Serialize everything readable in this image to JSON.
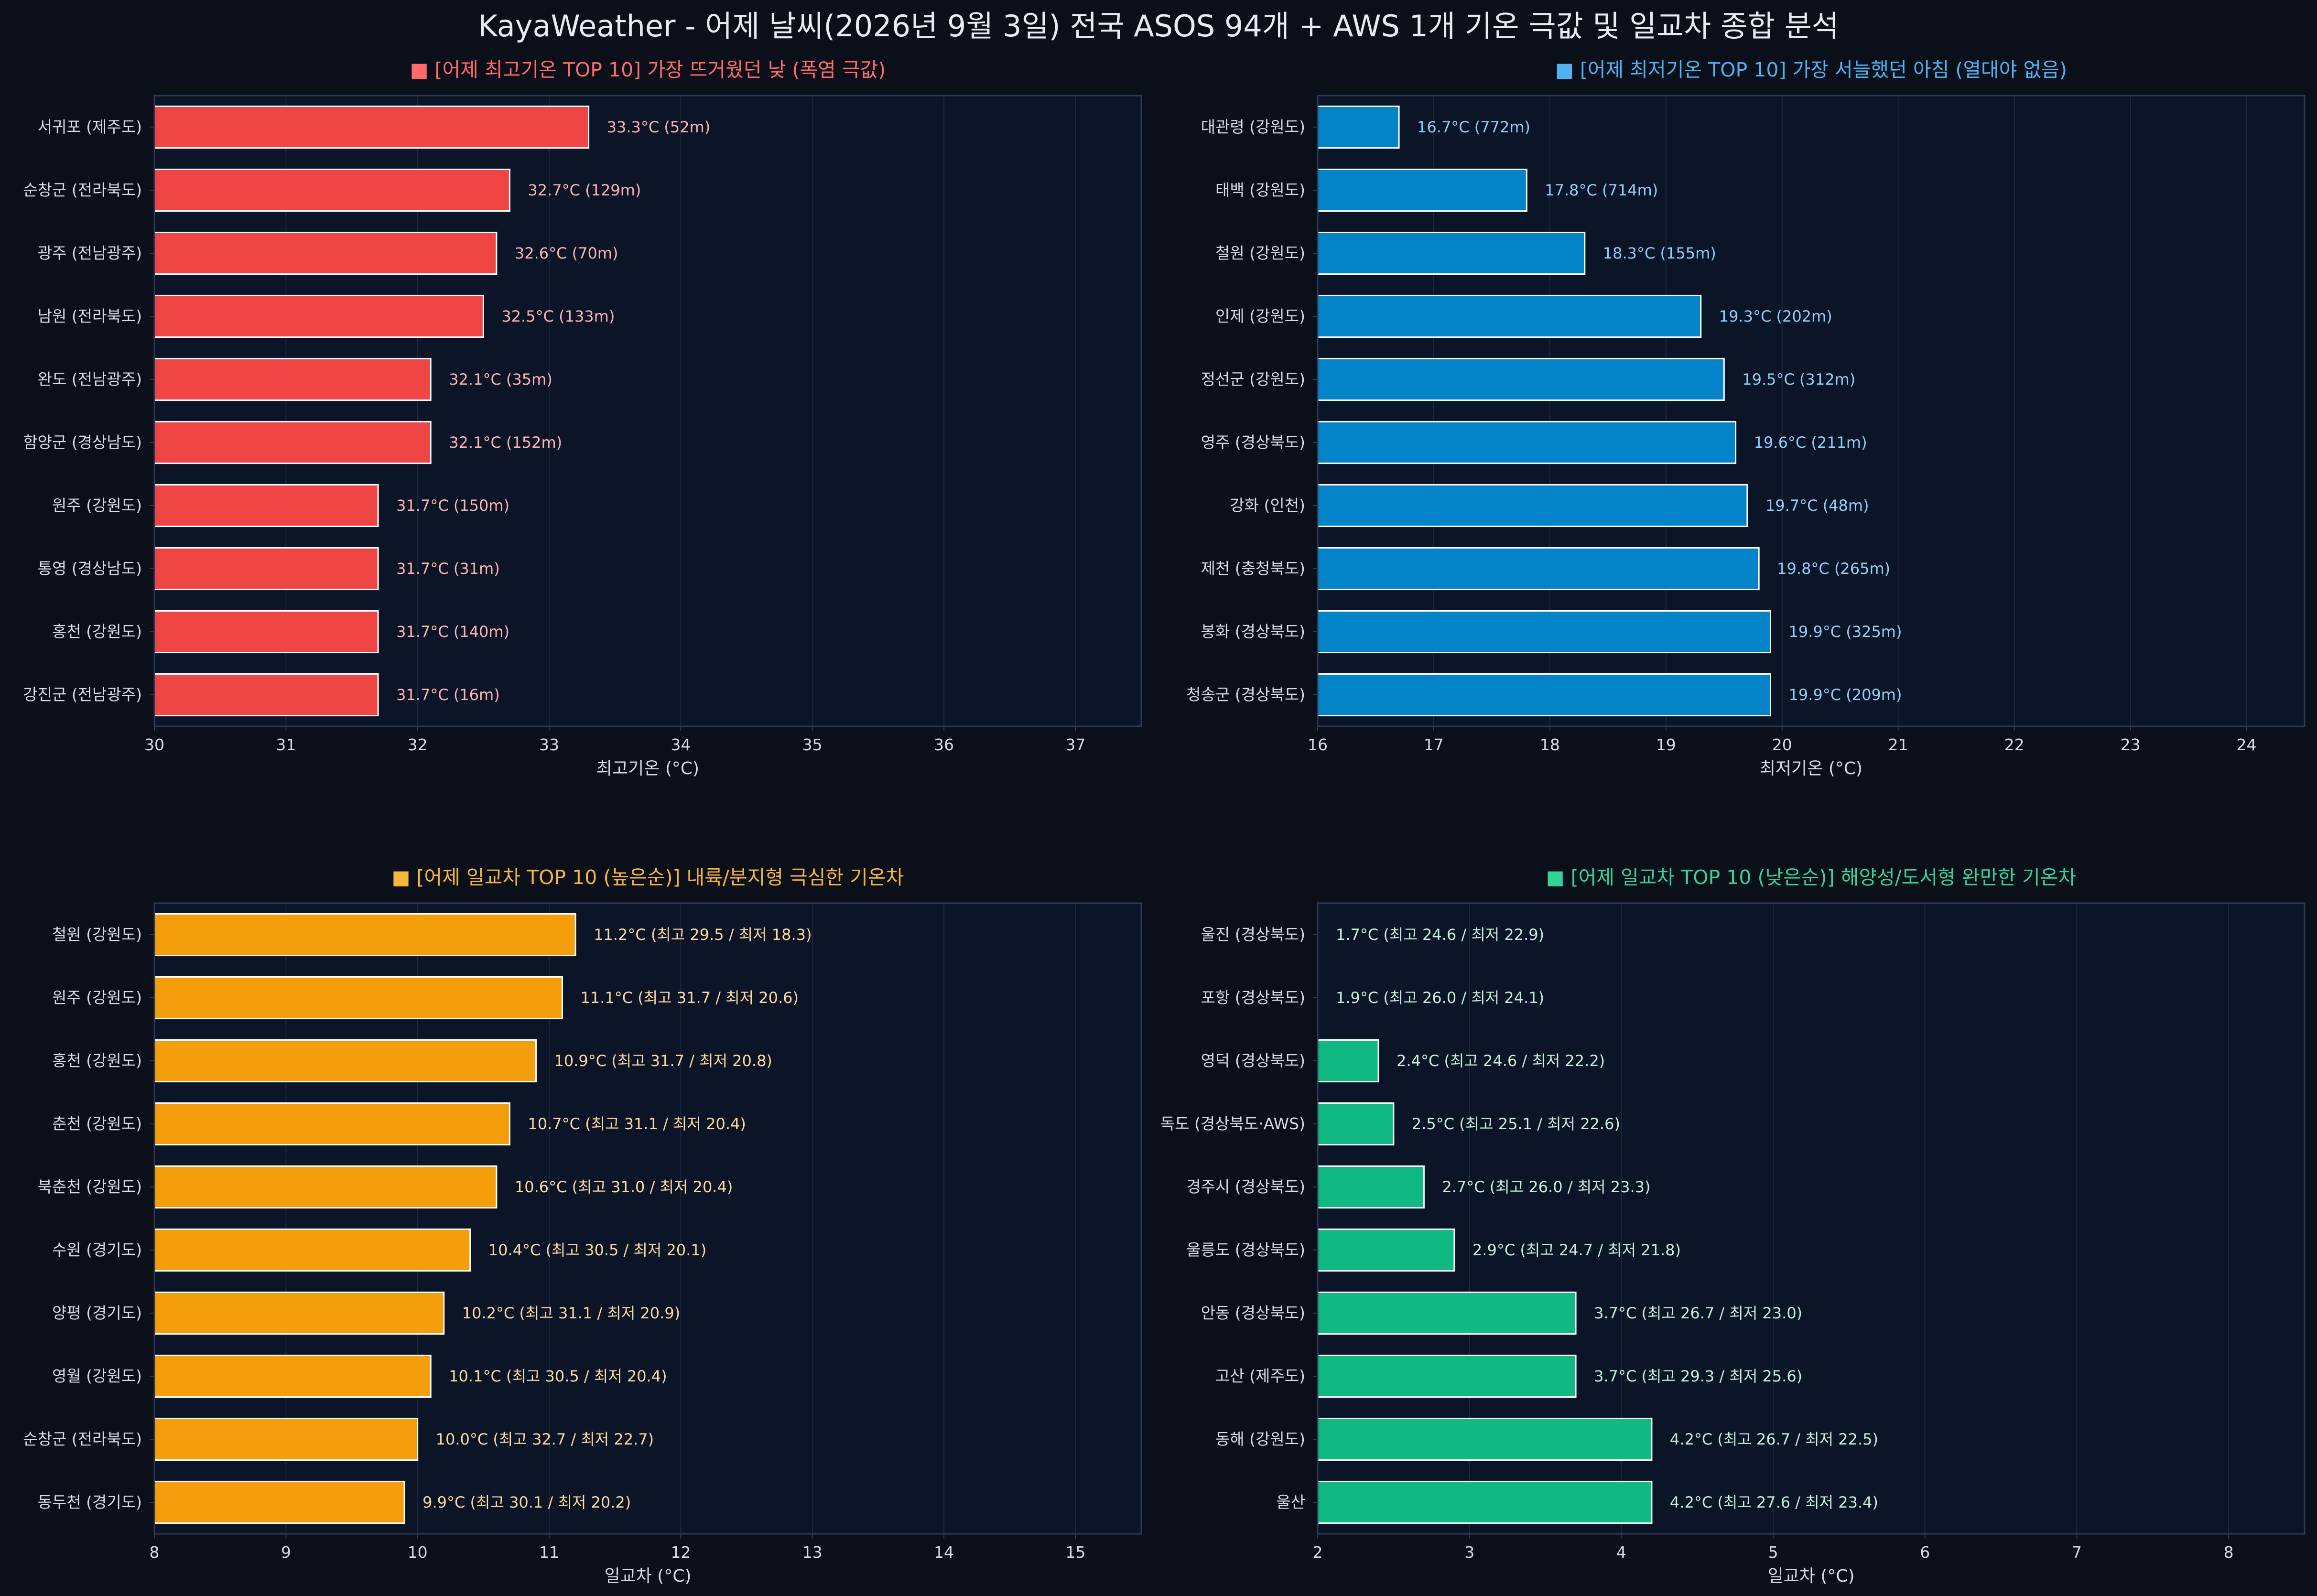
{
  "title": "KayaWeather - 어제 날씨(2026년 9월 3일) 전국 ASOS 94개 + AWS 1개 기온 극값 및 일교차 종합 분석",
  "colors": {
    "page_bg": "#0a0f1a",
    "plot_bg": "#0c1428",
    "spine": "#2c3a55",
    "grid": "#1d2940",
    "tick_text": "#d6dbe4",
    "bar_edge": "#ffffff"
  },
  "chart_data": [
    {
      "type": "bar",
      "orientation": "horizontal",
      "title": "■ [어제 최고기온 TOP 10] 가장 뜨거웠던 낮 (폭염 극값)",
      "title_color": "#ff6b6b",
      "bar_color": "#f04545",
      "label_color": "#ffb3b3",
      "xlabel": "최고기온 (°C)",
      "xlim": [
        30,
        37.5
      ],
      "xticks": [
        "30",
        "31",
        "32",
        "33",
        "34",
        "35",
        "36",
        "37"
      ],
      "categories": [
        "서귀포 (제주도)",
        "순창군 (전라북도)",
        "광주 (전남광주)",
        "남원 (전라북도)",
        "완도 (전남광주)",
        "함양군 (경상남도)",
        "원주 (강원도)",
        "통영 (경상남도)",
        "홍천 (강원도)",
        "강진군 (전남광주)"
      ],
      "values": [
        33.3,
        32.7,
        32.6,
        32.5,
        32.1,
        32.1,
        31.7,
        31.7,
        31.7,
        31.7
      ],
      "data_labels": [
        "33.3°C (52m)",
        "32.7°C (129m)",
        "32.6°C (70m)",
        "32.5°C (133m)",
        "32.1°C (35m)",
        "32.1°C (152m)",
        "31.7°C (150m)",
        "31.7°C (31m)",
        "31.7°C (140m)",
        "31.7°C (16m)"
      ]
    },
    {
      "type": "bar",
      "orientation": "horizontal",
      "title": "■ [어제 최저기온 TOP 10] 가장 서늘했던 아침 (열대야 없음)",
      "title_color": "#4fb3f0",
      "bar_color": "#0484c8",
      "label_color": "#8fd0f5",
      "xlabel": "최저기온 (°C)",
      "xlim": [
        16,
        24.5
      ],
      "xticks": [
        "16",
        "17",
        "18",
        "19",
        "20",
        "21",
        "22",
        "23",
        "24"
      ],
      "categories": [
        "대관령 (강원도)",
        "태백 (강원도)",
        "철원 (강원도)",
        "인제 (강원도)",
        "정선군 (강원도)",
        "영주 (경상북도)",
        "강화 (인천)",
        "제천 (충청북도)",
        "봉화 (경상북도)",
        "청송군 (경상북도)"
      ],
      "values": [
        16.7,
        17.8,
        18.3,
        19.3,
        19.5,
        19.6,
        19.7,
        19.8,
        19.9,
        19.9
      ],
      "data_labels": [
        "16.7°C (772m)",
        "17.8°C (714m)",
        "18.3°C (155m)",
        "19.3°C (202m)",
        "19.5°C (312m)",
        "19.6°C (211m)",
        "19.7°C (48m)",
        "19.8°C (265m)",
        "19.9°C (325m)",
        "19.9°C (209m)"
      ]
    },
    {
      "type": "bar",
      "orientation": "horizontal",
      "title": "■ [어제 일교차 TOP 10 (높은순)] 내륙/분지형 극심한 기온차",
      "title_color": "#f6b73c",
      "bar_color": "#f59e0b",
      "label_color": "#fcd9a0",
      "xlabel": "일교차 (°C)",
      "xlim": [
        8,
        15.5
      ],
      "xticks": [
        "8",
        "9",
        "10",
        "11",
        "12",
        "13",
        "14",
        "15"
      ],
      "categories": [
        "철원 (강원도)",
        "원주 (강원도)",
        "홍천 (강원도)",
        "춘천 (강원도)",
        "북춘천 (강원도)",
        "수원 (경기도)",
        "양평 (경기도)",
        "영월 (강원도)",
        "순창군 (전라북도)",
        "동두천 (경기도)"
      ],
      "values": [
        11.2,
        11.1,
        10.9,
        10.7,
        10.6,
        10.4,
        10.2,
        10.1,
        10.0,
        9.9
      ],
      "data_labels": [
        "11.2°C (최고 29.5 / 최저 18.3)",
        "11.1°C (최고 31.7 / 최저 20.6)",
        "10.9°C (최고 31.7 / 최저 20.8)",
        "10.7°C (최고 31.1 / 최저 20.4)",
        "10.6°C (최고 31.0 / 최저 20.4)",
        "10.4°C (최고 30.5 / 최저 20.1)",
        "10.2°C (최고 31.1 / 최저 20.9)",
        "10.1°C (최고 30.5 / 최저 20.4)",
        "10.0°C (최고 32.7 / 최저 22.7)",
        "9.9°C (최고 30.1 / 최저 20.2)"
      ]
    },
    {
      "type": "bar",
      "orientation": "horizontal",
      "title": "■ [어제 일교차 TOP 10 (낮은순)] 해양성/도서형 완만한 기온차",
      "title_color": "#34d399",
      "bar_color": "#10b981",
      "label_color": "#c6f0dc",
      "xlabel": "일교차 (°C)",
      "xlim": [
        2,
        8.5
      ],
      "xticks": [
        "2",
        "3",
        "4",
        "5",
        "6",
        "7",
        "8"
      ],
      "categories": [
        "울진 (경상북도)",
        "포항 (경상북도)",
        "영덕 (경상북도)",
        "독도 (경상북도·AWS)",
        "경주시 (경상북도)",
        "울릉도 (경상북도)",
        "안동 (경상북도)",
        "고산 (제주도)",
        "동해 (강원도)",
        "울산"
      ],
      "values": [
        1.7,
        1.9,
        2.4,
        2.5,
        2.7,
        2.9,
        3.7,
        3.7,
        4.2,
        4.2
      ],
      "data_labels": [
        "1.7°C (최고 24.6 / 최저 22.9)",
        "1.9°C (최고 26.0 / 최저 24.1)",
        "2.4°C (최고 24.6 / 최저 22.2)",
        "2.5°C (최고 25.1 / 최저 22.6)",
        "2.7°C (최고 26.0 / 최저 23.3)",
        "2.9°C (최고 24.7 / 최저 21.8)",
        "3.7°C (최고 26.7 / 최저 23.0)",
        "3.7°C (최고 29.3 / 최저 25.6)",
        "4.2°C (최고 26.7 / 최저 22.5)",
        "4.2°C (최고 27.6 / 최저 23.4)"
      ]
    }
  ]
}
